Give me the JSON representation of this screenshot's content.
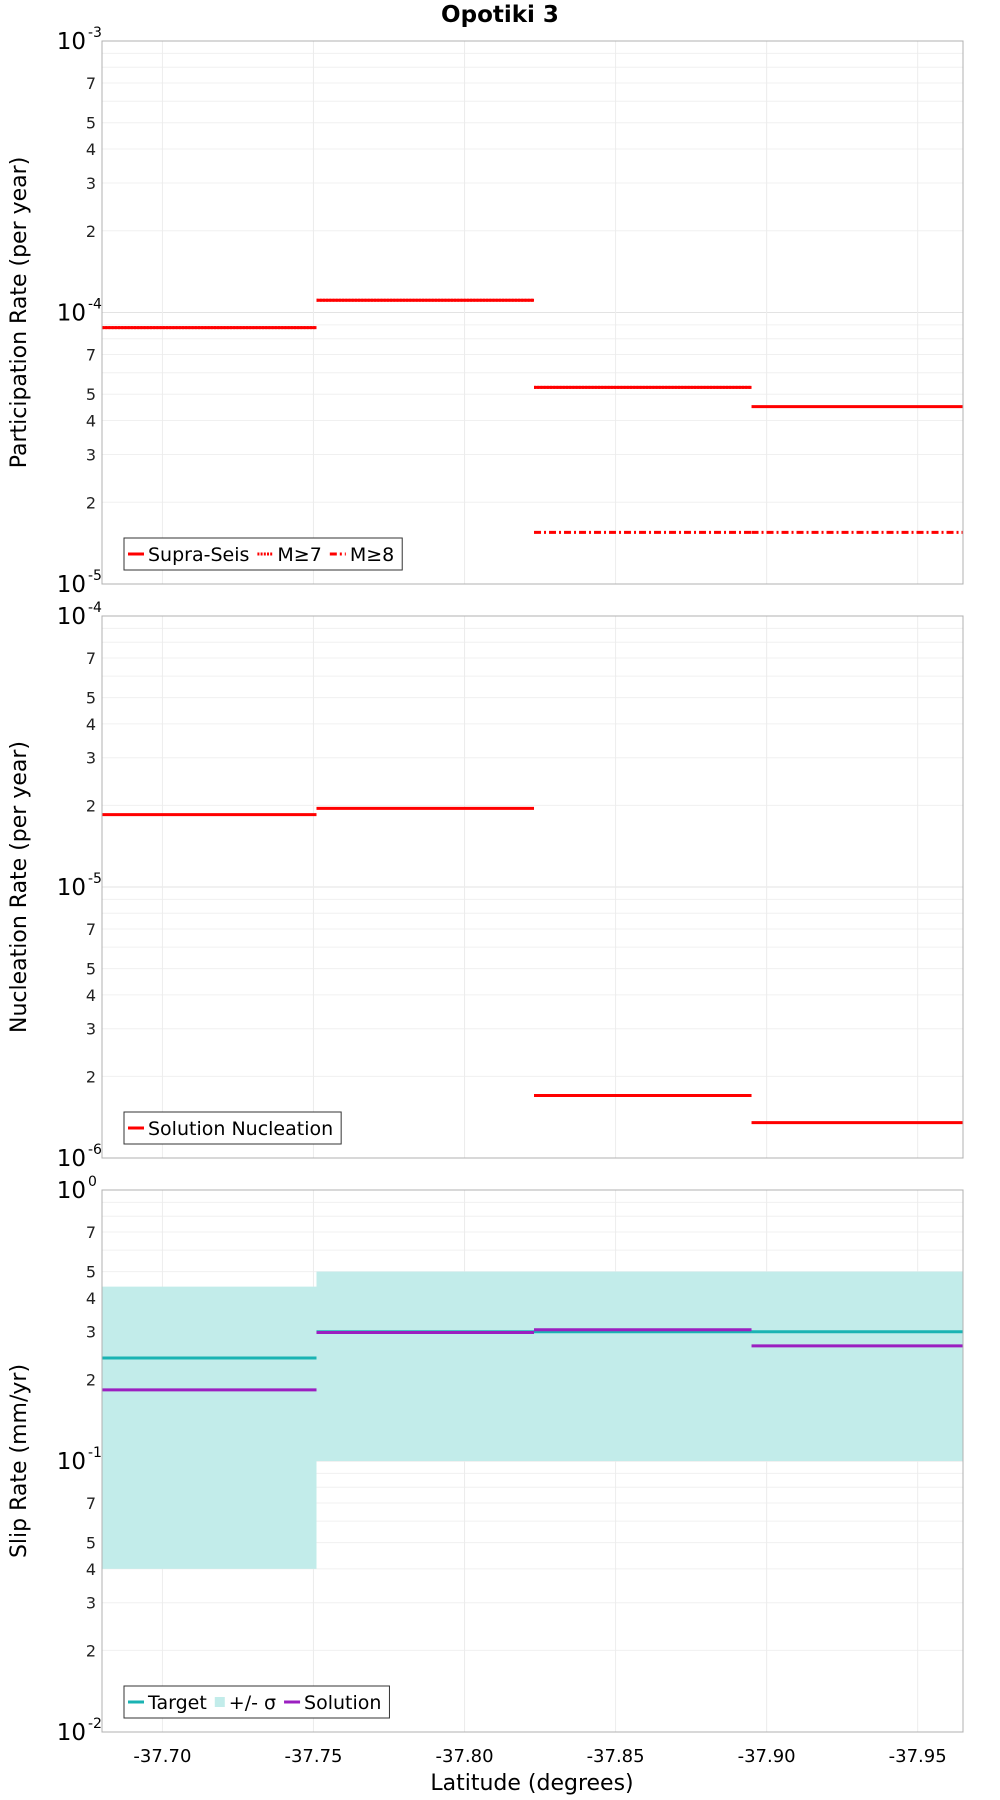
{
  "title": "Opotiki 3",
  "xlabel": "Latitude (degrees)",
  "colors": {
    "red": "#ff0000",
    "target": "#1ab3b3",
    "band": "#c2ecea",
    "solution": "#9b1fc0"
  },
  "chart_data": [
    {
      "type": "line",
      "ylabel": "Participation Rate (per year)",
      "yscale": "log",
      "ylim": [
        1e-05,
        0.001
      ],
      "y_decades": [
        {
          "base": "10",
          "exp": "-5"
        },
        {
          "base": "10",
          "exp": "-4"
        },
        {
          "base": "10",
          "exp": "-3"
        }
      ],
      "y_minor_labels": [
        "2",
        "3",
        "4",
        "5",
        "7"
      ],
      "xlim": [
        -37.68,
        -37.965
      ],
      "x_ticks": [
        "-37.70",
        "-37.75",
        "-37.80",
        "-37.85",
        "-37.90",
        "-37.95"
      ],
      "series": [
        {
          "name": "Supra-Seis",
          "style": "solid",
          "segments": [
            {
              "x": [
                -37.68,
                -37.751
              ],
              "y": 8.8e-05
            },
            {
              "x": [
                -37.751,
                -37.823
              ],
              "y": 0.000111
            },
            {
              "x": [
                -37.823,
                -37.895
              ],
              "y": 5.3e-05
            },
            {
              "x": [
                -37.895,
                -37.965
              ],
              "y": 4.5e-05
            }
          ]
        },
        {
          "name": "M≥7",
          "style": "dotted",
          "segments": [
            {
              "x": [
                -37.68,
                -37.751
              ],
              "y": 8.8e-05
            },
            {
              "x": [
                -37.751,
                -37.823
              ],
              "y": 0.000111
            },
            {
              "x": [
                -37.823,
                -37.895
              ],
              "y": 5.3e-05
            }
          ]
        },
        {
          "name": "M≥8",
          "style": "dashdot",
          "segments": [
            {
              "x": [
                -37.823,
                -37.895
              ],
              "y": 1.55e-05
            },
            {
              "x": [
                -37.895,
                -37.965
              ],
              "y": 1.55e-05
            }
          ]
        }
      ],
      "legend": [
        "Supra-Seis",
        "M≥7",
        "M≥8"
      ]
    },
    {
      "type": "line",
      "ylabel": "Nucleation Rate (per year)",
      "yscale": "log",
      "ylim": [
        1e-06,
        0.0001
      ],
      "y_decades": [
        {
          "base": "10",
          "exp": "-6"
        },
        {
          "base": "10",
          "exp": "-5"
        },
        {
          "base": "10",
          "exp": "-4"
        }
      ],
      "y_minor_labels": [
        "2",
        "3",
        "4",
        "5",
        "7"
      ],
      "xlim": [
        -37.68,
        -37.965
      ],
      "x_ticks": [
        "-37.70",
        "-37.75",
        "-37.80",
        "-37.85",
        "-37.90",
        "-37.95"
      ],
      "series": [
        {
          "name": "Solution Nucleation",
          "style": "solid",
          "segments": [
            {
              "x": [
                -37.68,
                -37.751
              ],
              "y": 1.85e-05
            },
            {
              "x": [
                -37.751,
                -37.823
              ],
              "y": 1.95e-05
            },
            {
              "x": [
                -37.823,
                -37.895
              ],
              "y": 1.7e-06
            },
            {
              "x": [
                -37.895,
                -37.965
              ],
              "y": 1.35e-06
            }
          ]
        }
      ],
      "legend": [
        "Solution Nucleation"
      ]
    },
    {
      "type": "area",
      "ylabel": "Slip Rate (mm/yr)",
      "xlabel": "Latitude (degrees)",
      "yscale": "log",
      "ylim": [
        0.01,
        1
      ],
      "y_decades": [
        {
          "base": "10",
          "exp": "-2"
        },
        {
          "base": "10",
          "exp": "-1"
        },
        {
          "base": "10",
          "exp": "0"
        }
      ],
      "y_minor_labels": [
        "2",
        "3",
        "4",
        "5",
        "7"
      ],
      "xlim": [
        -37.68,
        -37.965
      ],
      "x_ticks": [
        "-37.70",
        "-37.75",
        "-37.80",
        "-37.85",
        "-37.90",
        "-37.95"
      ],
      "band": [
        {
          "x": [
            -37.68,
            -37.751
          ],
          "y": [
            0.04,
            0.44
          ]
        },
        {
          "x": [
            -37.751,
            -37.965
          ],
          "y": [
            0.1,
            0.5
          ]
        }
      ],
      "series": [
        {
          "name": "Target",
          "style": "solid",
          "segments": [
            {
              "x": [
                -37.68,
                -37.751
              ],
              "y": 0.24
            },
            {
              "x": [
                -37.751,
                -37.823
              ],
              "y": 0.3
            },
            {
              "x": [
                -37.823,
                -37.895
              ],
              "y": 0.3
            },
            {
              "x": [
                -37.895,
                -37.965
              ],
              "y": 0.3
            }
          ]
        },
        {
          "name": "Solution",
          "style": "solid",
          "segments": [
            {
              "x": [
                -37.68,
                -37.751
              ],
              "y": 0.183
            },
            {
              "x": [
                -37.751,
                -37.823
              ],
              "y": 0.298
            },
            {
              "x": [
                -37.823,
                -37.895
              ],
              "y": 0.305
            },
            {
              "x": [
                -37.895,
                -37.965
              ],
              "y": 0.266
            }
          ]
        }
      ],
      "legend": [
        "Target",
        "+/- σ",
        "Solution"
      ]
    }
  ]
}
